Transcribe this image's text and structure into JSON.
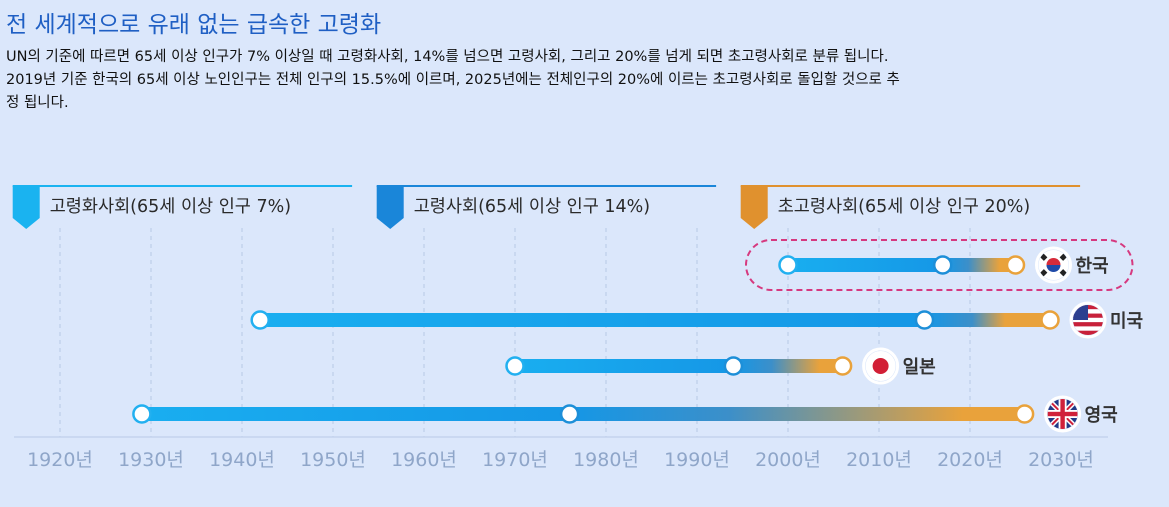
{
  "page": {
    "title": "전 세계적으로 유래 없는 급속한 고령화",
    "description_lines": [
      "UN의 기준에 따르면 65세 이상 인구가 7% 이상일 때 고령화사회, 14%를 넘으면 고령사회, 그리고 20%를 넘게 되면 초고령사회로 분류 됩니다.",
      "2019년 기준 한국의 65세 이상 노인인구는 전체 인구의 15.5%에 이르며, 2025년에는 전체인구의 20%에 이르는 초고령사회로 돌입할 것으로 추",
      "정 됩니다."
    ]
  },
  "chart_data": {
    "type": "timeline",
    "x_unit": "year",
    "xlim": [
      1915,
      2035
    ],
    "tick_values": [
      1920,
      1930,
      1940,
      1950,
      1960,
      1970,
      1980,
      1990,
      2000,
      2010,
      2020,
      2030
    ],
    "tick_labels": [
      "1920년",
      "1930년",
      "1940년",
      "1950년",
      "1960년",
      "1970년",
      "1980년",
      "1990년",
      "2000년",
      "2010년",
      "2020년",
      "2030년"
    ],
    "stages": [
      {
        "label": "고령화사회(65세 이상 인구 7%)",
        "color": "#1ab3f0",
        "start": 1917,
        "end": 1951
      },
      {
        "label": "고령사회(65세 이상 인구 14%)",
        "color": "#1a86d9",
        "start": 1957,
        "end": 1991
      },
      {
        "label": "초고령사회(65세 이상 인구 20%)",
        "color": "#e0912e",
        "start": 1997,
        "end": 2031
      }
    ],
    "series": [
      {
        "country": "한국",
        "flag": "korea",
        "aging": 2000,
        "aged": 2017,
        "super_aged": 2025,
        "highlighted": true
      },
      {
        "country": "미국",
        "flag": "usa",
        "aging": 1942,
        "aged": 2015,
        "super_aged": 2036
      },
      {
        "country": "일본",
        "flag": "japan",
        "aging": 1970,
        "aged": 1994,
        "super_aged": 2006
      },
      {
        "country": "영국",
        "flag": "uk",
        "aging": 1929,
        "aged": 1976,
        "super_aged": 2026
      }
    ]
  },
  "colors": {
    "background": "#dbe7fb",
    "title": "#1f5fc4",
    "bar_blue": "#1aa3ea",
    "bar_orange": "#e9a23b",
    "highlight_border": "#d6397f"
  }
}
